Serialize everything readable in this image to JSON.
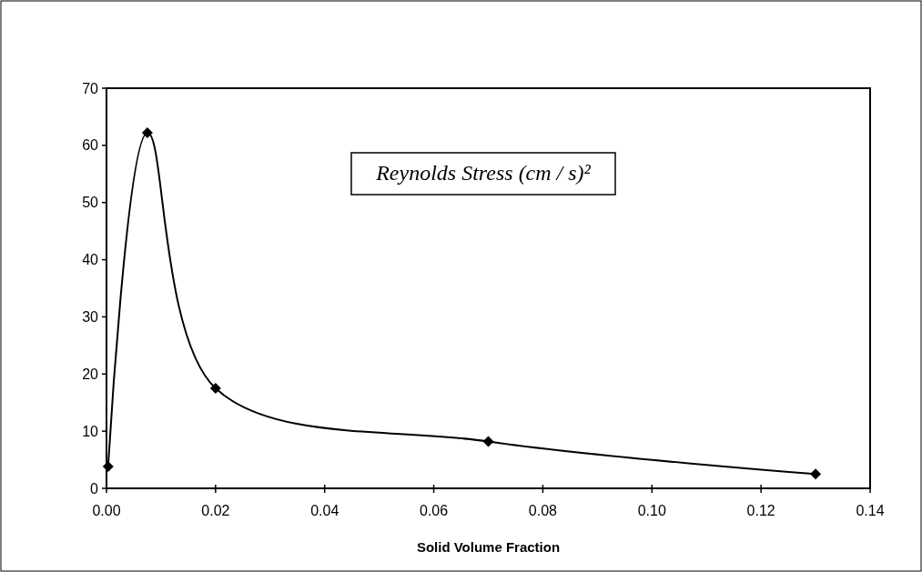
{
  "chart_data": {
    "type": "line",
    "xlabel": "Solid Volume Fraction",
    "annotations": [
      "Reynolds Stress (cm / s)²"
    ],
    "series": [
      {
        "color": "#000000",
        "x": [
          0.0003,
          0.0075,
          0.02,
          0.07,
          0.13
        ],
        "values": [
          3.8,
          62.2,
          17.5,
          8.2,
          2.5
        ]
      }
    ],
    "xlim": [
      0,
      0.14
    ],
    "xticks": [
      {
        "value": 0,
        "label": "0.00"
      },
      {
        "value": 0.02,
        "label": "0.02"
      },
      {
        "value": 0.04,
        "label": "0.04"
      },
      {
        "value": 0.06,
        "label": "0.06"
      },
      {
        "value": 0.08,
        "label": "0.08"
      },
      {
        "value": 0.1,
        "label": "0.10"
      },
      {
        "value": 0.12,
        "label": "0.12"
      },
      {
        "value": 0.14,
        "label": "0.14"
      }
    ],
    "ylim": [
      0,
      70
    ],
    "yticks": [
      0,
      10,
      20,
      30,
      40,
      50,
      60,
      70
    ],
    "marker": "diamond",
    "line_style": "solid"
  }
}
